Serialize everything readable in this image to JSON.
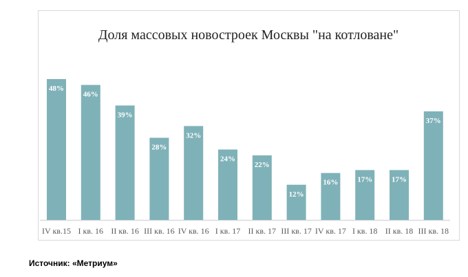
{
  "chart_data": {
    "type": "bar",
    "title": "Доля массовых  новостроек Москвы \"на котловане\"",
    "categories": [
      "IV кв.15",
      "I кв. 16",
      "II кв. 16",
      "III кв. 16",
      "IV кв. 16",
      "I кв. 17",
      "II кв. 17",
      "III кв. 17",
      "IV кв. 17",
      "I кв. 18",
      "II кв. 18",
      "III кв. 18"
    ],
    "values": [
      48,
      46,
      39,
      28,
      32,
      24,
      22,
      12,
      16,
      17,
      17,
      37
    ],
    "data_labels": [
      "48%",
      "46%",
      "39%",
      "28%",
      "32%",
      "24%",
      "22%",
      "12%",
      "16%",
      "17%",
      "17%",
      "37%"
    ],
    "xlabel": "",
    "ylabel": "",
    "ylim": [
      0,
      50
    ],
    "grid": false,
    "bar_color": "#7fb2b8"
  },
  "source": "Источник: «Метриум»"
}
